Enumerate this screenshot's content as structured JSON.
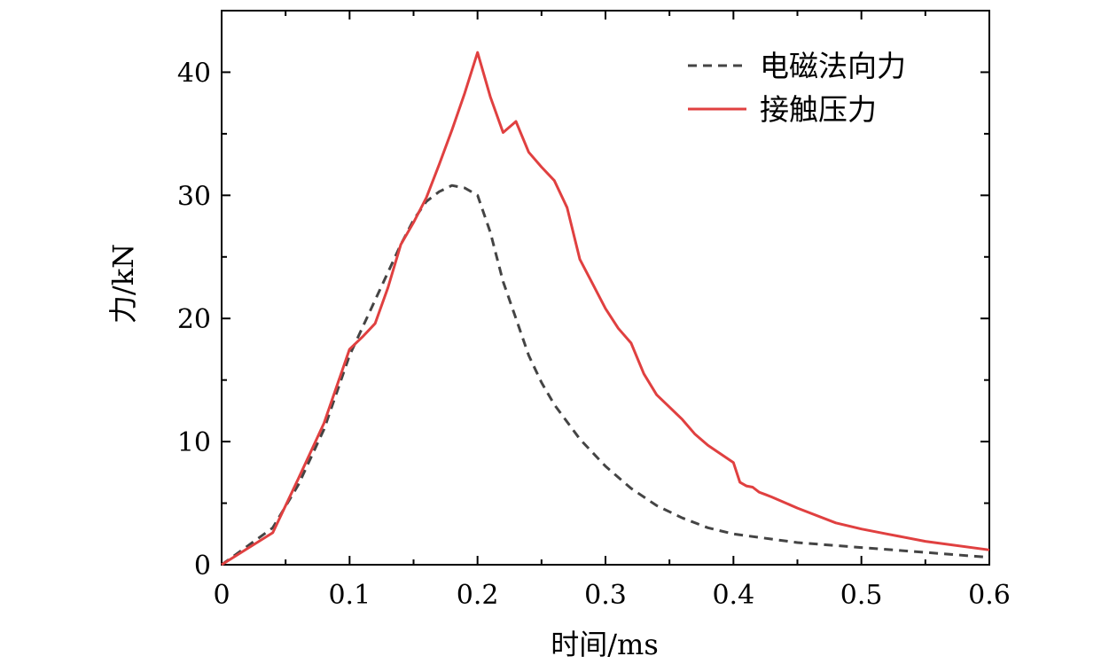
{
  "chart_data": {
    "type": "line",
    "title": "",
    "xlabel": "时间/ms",
    "ylabel": "力/kN",
    "xlim": [
      0,
      0.6
    ],
    "ylim": [
      0,
      45
    ],
    "xticks": [
      0,
      0.1,
      0.2,
      0.3,
      0.4,
      0.5,
      0.6
    ],
    "xtick_labels": [
      "0",
      "0.1",
      "0.2",
      "0.3",
      "0.4",
      "0.5",
      "0.6"
    ],
    "yticks": [
      0,
      10,
      20,
      30,
      40
    ],
    "ytick_labels": [
      "0",
      "10",
      "20",
      "30",
      "40"
    ],
    "grid": false,
    "legend_position": "top-right",
    "series": [
      {
        "name": "电磁法向力",
        "style": "dashed",
        "color": "#444444",
        "x": [
          0,
          0.02,
          0.04,
          0.06,
          0.08,
          0.1,
          0.12,
          0.14,
          0.15,
          0.16,
          0.17,
          0.18,
          0.19,
          0.2,
          0.21,
          0.22,
          0.23,
          0.24,
          0.25,
          0.26,
          0.28,
          0.3,
          0.32,
          0.34,
          0.36,
          0.38,
          0.4,
          0.45,
          0.5,
          0.55,
          0.6
        ],
        "y": [
          0,
          1.5,
          3.0,
          6.5,
          11.0,
          17.0,
          21.5,
          26.0,
          28.0,
          29.5,
          30.3,
          30.8,
          30.6,
          30.0,
          27.0,
          23.0,
          20.0,
          17.0,
          14.8,
          13.0,
          10.2,
          8.0,
          6.2,
          4.8,
          3.8,
          3.0,
          2.5,
          1.8,
          1.4,
          1.0,
          0.6
        ]
      },
      {
        "name": "接触压力",
        "style": "solid",
        "color": "#e04040",
        "x": [
          0,
          0.02,
          0.04,
          0.06,
          0.08,
          0.1,
          0.11,
          0.12,
          0.13,
          0.14,
          0.15,
          0.16,
          0.17,
          0.18,
          0.19,
          0.2,
          0.21,
          0.22,
          0.23,
          0.24,
          0.25,
          0.26,
          0.27,
          0.28,
          0.29,
          0.3,
          0.31,
          0.32,
          0.33,
          0.34,
          0.35,
          0.36,
          0.37,
          0.38,
          0.39,
          0.4,
          0.405,
          0.41,
          0.415,
          0.42,
          0.425,
          0.43,
          0.45,
          0.48,
          0.5,
          0.52,
          0.55,
          0.6
        ],
        "y": [
          0,
          1.3,
          2.6,
          7.0,
          11.5,
          17.5,
          18.5,
          19.6,
          22.5,
          26.0,
          27.8,
          29.8,
          32.5,
          35.3,
          38.3,
          41.6,
          38.0,
          35.1,
          36.0,
          33.5,
          32.3,
          31.2,
          29.0,
          24.8,
          22.8,
          20.8,
          19.2,
          18.0,
          15.5,
          13.8,
          12.8,
          11.8,
          10.6,
          9.7,
          9.0,
          8.3,
          6.7,
          6.4,
          6.3,
          5.9,
          5.7,
          5.5,
          4.6,
          3.4,
          2.9,
          2.5,
          1.9,
          1.2
        ]
      }
    ]
  }
}
